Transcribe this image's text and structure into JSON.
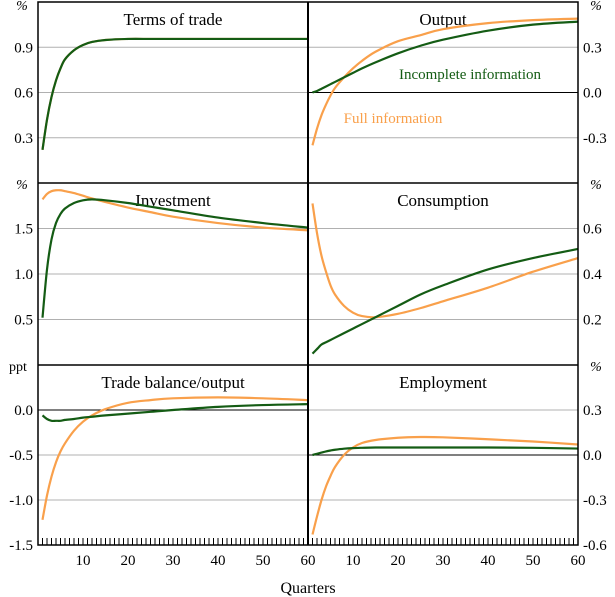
{
  "chart_data": [
    {
      "type": "line",
      "title": "Terms of trade",
      "unit": "%",
      "axis_side": "left",
      "ylim": [
        0,
        1.2
      ],
      "yticks": [
        0.3,
        0.6,
        0.9
      ],
      "zero_line": false,
      "x": [
        1,
        2,
        3,
        4,
        5,
        6,
        8,
        10,
        12,
        15,
        20,
        25,
        30,
        40,
        50,
        60
      ],
      "series": [
        {
          "name": "Full information",
          "color": "#f9a04b",
          "values": [
            0.22,
            0.42,
            0.57,
            0.68,
            0.76,
            0.82,
            0.88,
            0.915,
            0.935,
            0.948,
            0.955,
            0.955,
            0.955,
            0.955,
            0.955,
            0.955
          ]
        },
        {
          "name": "Incomplete information",
          "color": "#145c14",
          "values": [
            0.22,
            0.42,
            0.57,
            0.68,
            0.76,
            0.82,
            0.88,
            0.915,
            0.935,
            0.948,
            0.955,
            0.955,
            0.955,
            0.955,
            0.955,
            0.955
          ]
        }
      ]
    },
    {
      "type": "line",
      "title": "Output",
      "unit": "%",
      "axis_side": "right",
      "ylim": [
        -0.6,
        0.6
      ],
      "yticks": [
        -0.3,
        0.0,
        0.3
      ],
      "zero_line": true,
      "x": [
        1,
        2,
        3,
        4,
        5,
        6,
        8,
        10,
        12,
        15,
        20,
        25,
        30,
        40,
        50,
        60
      ],
      "series": [
        {
          "name": "Full information",
          "color": "#f9a04b",
          "values": [
            -0.35,
            -0.24,
            -0.15,
            -0.08,
            -0.02,
            0.03,
            0.1,
            0.16,
            0.21,
            0.27,
            0.34,
            0.38,
            0.42,
            0.46,
            0.48,
            0.49
          ]
        },
        {
          "name": "Incomplete information",
          "color": "#145c14",
          "values": [
            0.0,
            0.01,
            0.025,
            0.04,
            0.055,
            0.07,
            0.1,
            0.13,
            0.16,
            0.2,
            0.26,
            0.31,
            0.35,
            0.41,
            0.45,
            0.47
          ]
        }
      ],
      "annotations": [
        {
          "text": "Incomplete information",
          "color": "#145c14"
        },
        {
          "text": "Full information",
          "color": "#f9a04b"
        }
      ]
    },
    {
      "type": "line",
      "title": "Investment",
      "unit": "%",
      "axis_side": "left",
      "ylim": [
        0,
        2
      ],
      "yticks": [
        0.5,
        1.0,
        1.5
      ],
      "zero_line": false,
      "x": [
        1,
        2,
        3,
        4,
        5,
        6,
        8,
        10,
        12,
        15,
        20,
        25,
        30,
        40,
        50,
        60
      ],
      "series": [
        {
          "name": "Full information",
          "color": "#f9a04b",
          "values": [
            1.82,
            1.88,
            1.91,
            1.92,
            1.92,
            1.91,
            1.89,
            1.86,
            1.83,
            1.79,
            1.73,
            1.68,
            1.63,
            1.56,
            1.51,
            1.48
          ]
        },
        {
          "name": "Incomplete information",
          "color": "#145c14",
          "values": [
            0.52,
            1.05,
            1.38,
            1.56,
            1.66,
            1.72,
            1.78,
            1.81,
            1.82,
            1.81,
            1.78,
            1.74,
            1.7,
            1.62,
            1.56,
            1.51
          ]
        }
      ]
    },
    {
      "type": "line",
      "title": "Consumption",
      "unit": "%",
      "axis_side": "right",
      "ylim": [
        0,
        0.8
      ],
      "yticks": [
        0.2,
        0.4,
        0.6
      ],
      "zero_line": false,
      "x": [
        1,
        2,
        3,
        4,
        5,
        6,
        8,
        10,
        12,
        15,
        20,
        25,
        30,
        40,
        50,
        60
      ],
      "series": [
        {
          "name": "Full information",
          "color": "#f9a04b",
          "values": [
            0.71,
            0.58,
            0.48,
            0.41,
            0.35,
            0.31,
            0.26,
            0.23,
            0.215,
            0.21,
            0.225,
            0.25,
            0.28,
            0.34,
            0.41,
            0.47
          ]
        },
        {
          "name": "Incomplete information",
          "color": "#145c14",
          "values": [
            0.05,
            0.07,
            0.09,
            0.1,
            0.11,
            0.12,
            0.14,
            0.16,
            0.18,
            0.21,
            0.26,
            0.31,
            0.35,
            0.42,
            0.47,
            0.51
          ]
        }
      ]
    },
    {
      "type": "line",
      "title": "Trade balance/output",
      "unit": "ppt",
      "axis_side": "left",
      "ylim": [
        -1.5,
        0.5
      ],
      "yticks": [
        -1.5,
        -1.0,
        -0.5,
        0.0
      ],
      "zero_line": true,
      "x": [
        1,
        2,
        3,
        4,
        5,
        6,
        8,
        10,
        12,
        15,
        20,
        25,
        30,
        40,
        50,
        60
      ],
      "xticks": [
        10,
        20,
        30,
        40,
        50,
        60
      ],
      "series": [
        {
          "name": "Full information",
          "color": "#f9a04b",
          "values": [
            -1.22,
            -0.95,
            -0.74,
            -0.58,
            -0.46,
            -0.37,
            -0.23,
            -0.13,
            -0.06,
            0.01,
            0.08,
            0.11,
            0.13,
            0.14,
            0.13,
            0.11
          ]
        },
        {
          "name": "Incomplete information",
          "color": "#145c14",
          "values": [
            -0.06,
            -0.1,
            -0.12,
            -0.12,
            -0.12,
            -0.11,
            -0.1,
            -0.085,
            -0.075,
            -0.06,
            -0.04,
            -0.02,
            0.0,
            0.035,
            0.055,
            0.065
          ]
        }
      ]
    },
    {
      "type": "line",
      "title": "Employment",
      "unit": "%",
      "axis_side": "right",
      "ylim": [
        -0.6,
        0.6
      ],
      "yticks": [
        -0.6,
        -0.3,
        0.0,
        0.3
      ],
      "zero_line": true,
      "x": [
        1,
        2,
        3,
        4,
        5,
        6,
        8,
        10,
        12,
        15,
        20,
        25,
        30,
        40,
        50,
        60
      ],
      "xticks": [
        10,
        20,
        30,
        40,
        50,
        60
      ],
      "series": [
        {
          "name": "Full information",
          "color": "#f9a04b",
          "values": [
            -0.53,
            -0.41,
            -0.3,
            -0.21,
            -0.14,
            -0.08,
            0.0,
            0.05,
            0.08,
            0.1,
            0.115,
            0.12,
            0.118,
            0.105,
            0.09,
            0.07
          ]
        },
        {
          "name": "Incomplete information",
          "color": "#145c14",
          "values": [
            0.0,
            0.008,
            0.016,
            0.024,
            0.03,
            0.035,
            0.042,
            0.046,
            0.048,
            0.05,
            0.05,
            0.05,
            0.05,
            0.05,
            0.048,
            0.043
          ]
        }
      ]
    }
  ],
  "xlabel": "Quarters",
  "xlim": [
    0,
    60
  ]
}
